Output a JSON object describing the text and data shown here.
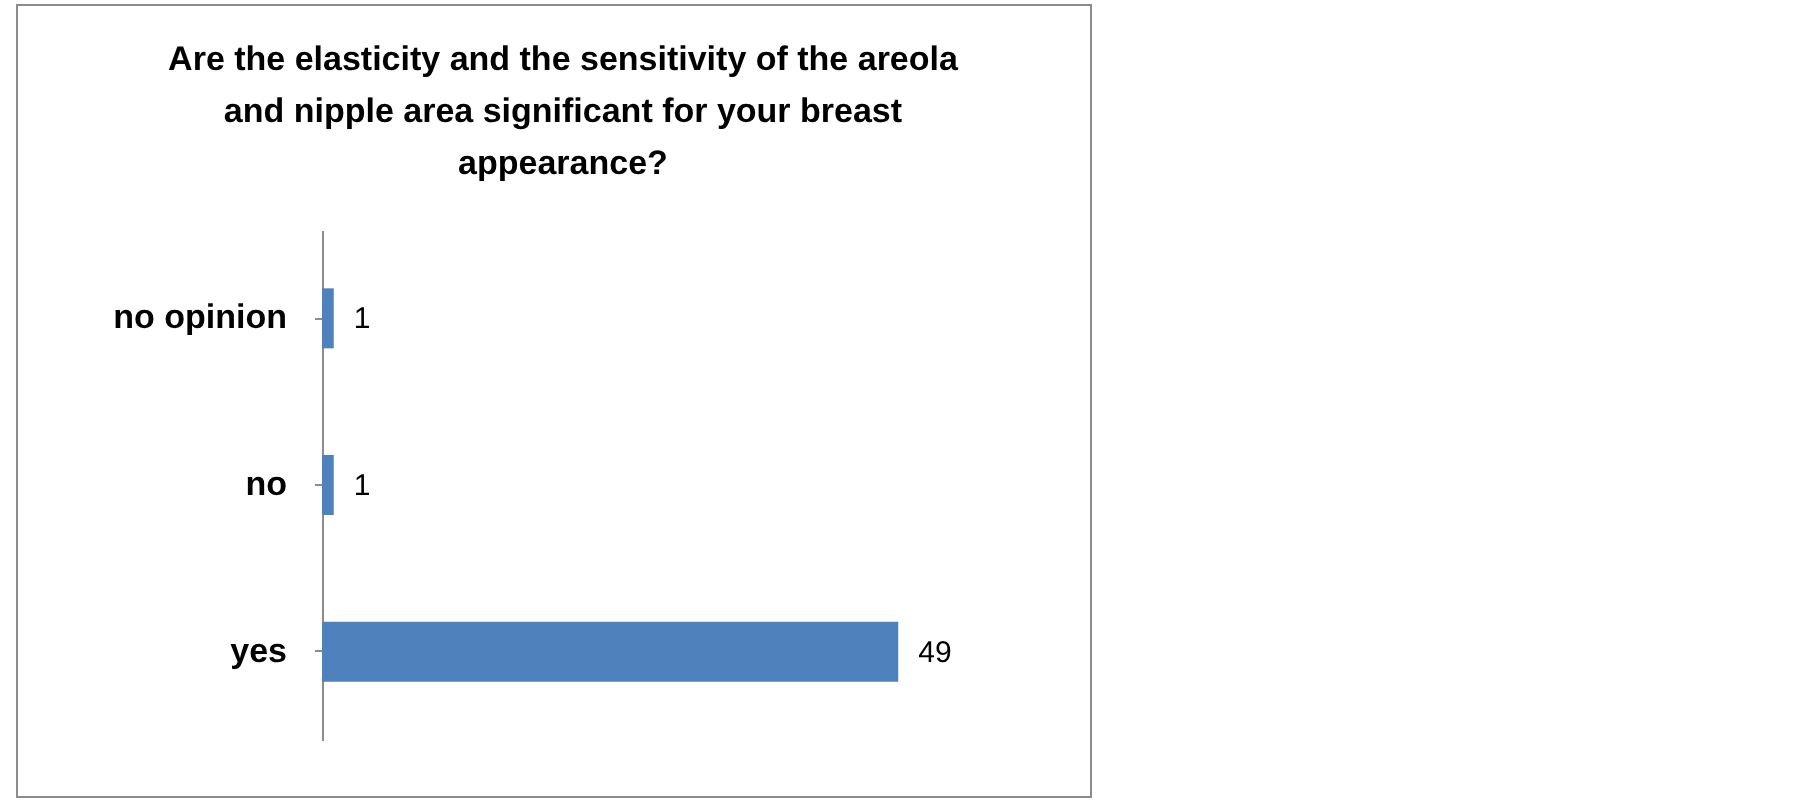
{
  "chart_data": {
    "type": "bar",
    "orientation": "horizontal",
    "title": "Are the elasticity and the sensitivity of the areola and nipple area significant for your breast appearance?",
    "categories": [
      "no opinion",
      "no",
      "yes"
    ],
    "values": [
      1,
      1,
      49
    ],
    "color": "#4f81bd",
    "data_labels": true
  }
}
